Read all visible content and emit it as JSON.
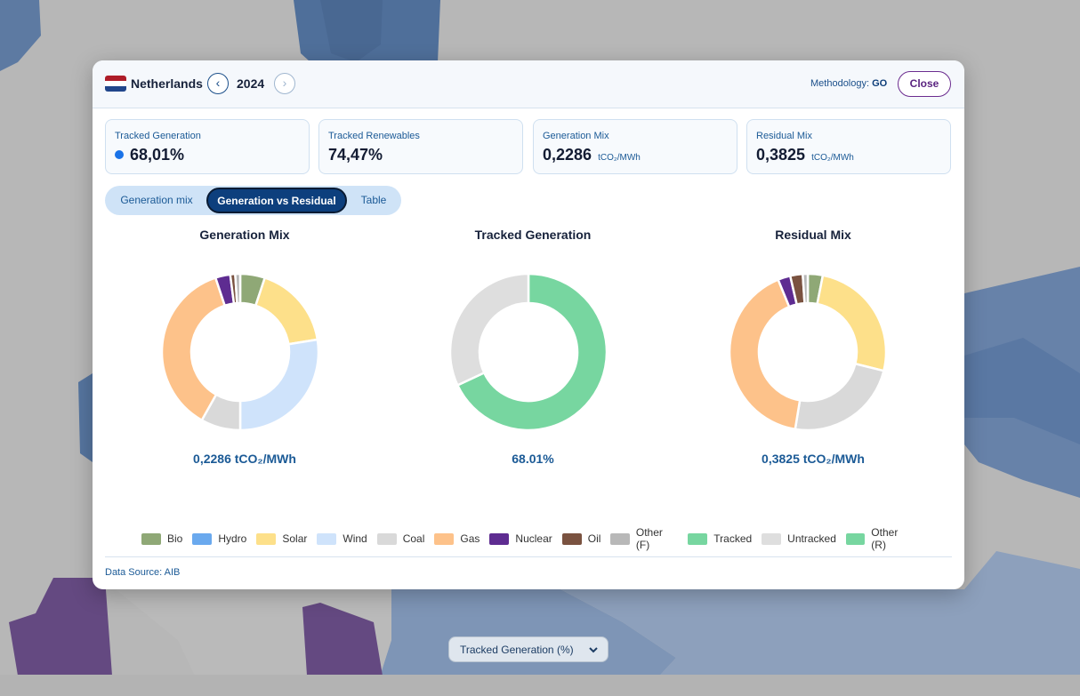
{
  "header": {
    "country": "Netherlands",
    "year": "2024",
    "prev_glyph": "‹",
    "next_glyph": "›",
    "methodology_label": "Methodology:",
    "methodology_value": "GO",
    "close_label": "Close"
  },
  "cards": [
    {
      "label": "Tracked Generation",
      "value": "68,01%",
      "unit": ""
    },
    {
      "label": "Tracked Renewables",
      "value": "74,47%",
      "unit": ""
    },
    {
      "label": "Generation Mix",
      "value": "0,2286",
      "unit": "tCO₂/MWh"
    },
    {
      "label": "Residual Mix",
      "value": "0,3825",
      "unit": "tCO₂/MWh"
    }
  ],
  "tabs": [
    "Generation mix",
    "Generation vs Residual",
    "Table"
  ],
  "active_tab": "Generation vs Residual",
  "charts": [
    {
      "title": "Generation Mix",
      "caption": "0,2286 tCO₂/MWh"
    },
    {
      "title": "Tracked Generation",
      "caption": "68.01%"
    },
    {
      "title": "Residual Mix",
      "caption": "0,3825 tCO₂/MWh"
    }
  ],
  "colors": {
    "Bio": "#8fa876",
    "Hydro": "#6aa9ee",
    "Solar": "#fde08a",
    "Wind": "#cfe3fb",
    "Coal": "#d9d9d9",
    "Gas": "#fdc28a",
    "Nuclear": "#5e2c91",
    "Oil": "#7a5240",
    "Other (F)": "#b8b8b8",
    "Tracked": "#77d6a0",
    "Untracked": "#dedede",
    "Other (R)": "#77d6a0"
  },
  "chart_data": [
    {
      "type": "pie",
      "title": "Generation Mix",
      "labels": [
        "Bio",
        "Solar",
        "Wind",
        "Coal",
        "Gas",
        "Nuclear",
        "Oil",
        "Other (F)"
      ],
      "values": [
        5,
        17,
        27,
        8,
        36,
        3,
        1,
        1
      ]
    },
    {
      "type": "pie",
      "title": "Tracked Generation",
      "labels": [
        "Tracked",
        "Untracked"
      ],
      "values": [
        68.01,
        31.99
      ]
    },
    {
      "type": "pie",
      "title": "Residual Mix",
      "labels": [
        "Bio",
        "Solar",
        "Coal",
        "Gas",
        "Nuclear",
        "Oil",
        "Other (F)"
      ],
      "values": [
        3,
        25,
        23,
        40,
        2.5,
        2.5,
        1
      ]
    }
  ],
  "legend": [
    "Bio",
    "Hydro",
    "Solar",
    "Wind",
    "Coal",
    "Gas",
    "Nuclear",
    "Oil",
    "Other (F)",
    "Tracked",
    "Untracked",
    "Other (R)"
  ],
  "footer": {
    "source": "Data Source: AIB"
  },
  "map_select": {
    "value": "Tracked Generation (%)"
  }
}
